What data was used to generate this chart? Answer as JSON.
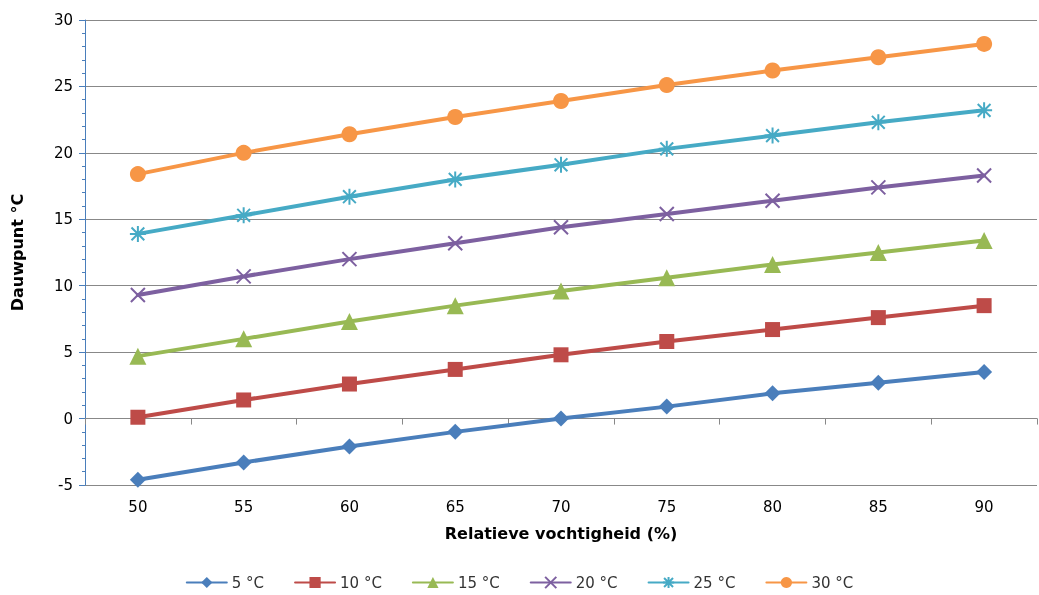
{
  "chart_data": {
    "type": "line",
    "xlabel": "Relatieve vochtigheid (%)",
    "ylabel": "Dauwpunt °C",
    "categories": [
      "50",
      "55",
      "60",
      "65",
      "70",
      "75",
      "80",
      "85",
      "90"
    ],
    "ylim": [
      -5,
      30
    ],
    "yticks": [
      -5,
      0,
      5,
      10,
      15,
      20,
      25,
      30
    ],
    "grid": "y",
    "legend": "bottom",
    "line_style": "solid",
    "series": [
      {
        "name": "5 °C",
        "color": "#4a7ebb",
        "marker": "diamond",
        "values": [
          -4.6,
          -3.3,
          -2.1,
          -1.0,
          0.0,
          0.9,
          1.9,
          2.7,
          3.5
        ]
      },
      {
        "name": "10 °C",
        "color": "#be4b48",
        "marker": "square",
        "values": [
          0.1,
          1.4,
          2.6,
          3.7,
          4.8,
          5.8,
          6.7,
          7.6,
          8.5
        ]
      },
      {
        "name": "15 °C",
        "color": "#98b954",
        "marker": "triangle",
        "values": [
          4.7,
          6.0,
          7.3,
          8.5,
          9.6,
          10.6,
          11.6,
          12.5,
          13.4
        ]
      },
      {
        "name": "20 °C",
        "color": "#7d60a0",
        "marker": "cross",
        "values": [
          9.3,
          10.7,
          12.0,
          13.2,
          14.4,
          15.4,
          16.4,
          17.4,
          18.3
        ]
      },
      {
        "name": "25 °C",
        "color": "#46aac5",
        "marker": "cross",
        "values": [
          13.9,
          15.3,
          16.7,
          18.0,
          19.1,
          20.3,
          21.3,
          22.3,
          23.2
        ]
      },
      {
        "name": "30 °C",
        "color": "#f79646",
        "marker": "circle",
        "values": [
          18.4,
          20.0,
          21.4,
          22.7,
          23.9,
          25.1,
          26.2,
          27.2,
          28.2
        ]
      }
    ]
  }
}
